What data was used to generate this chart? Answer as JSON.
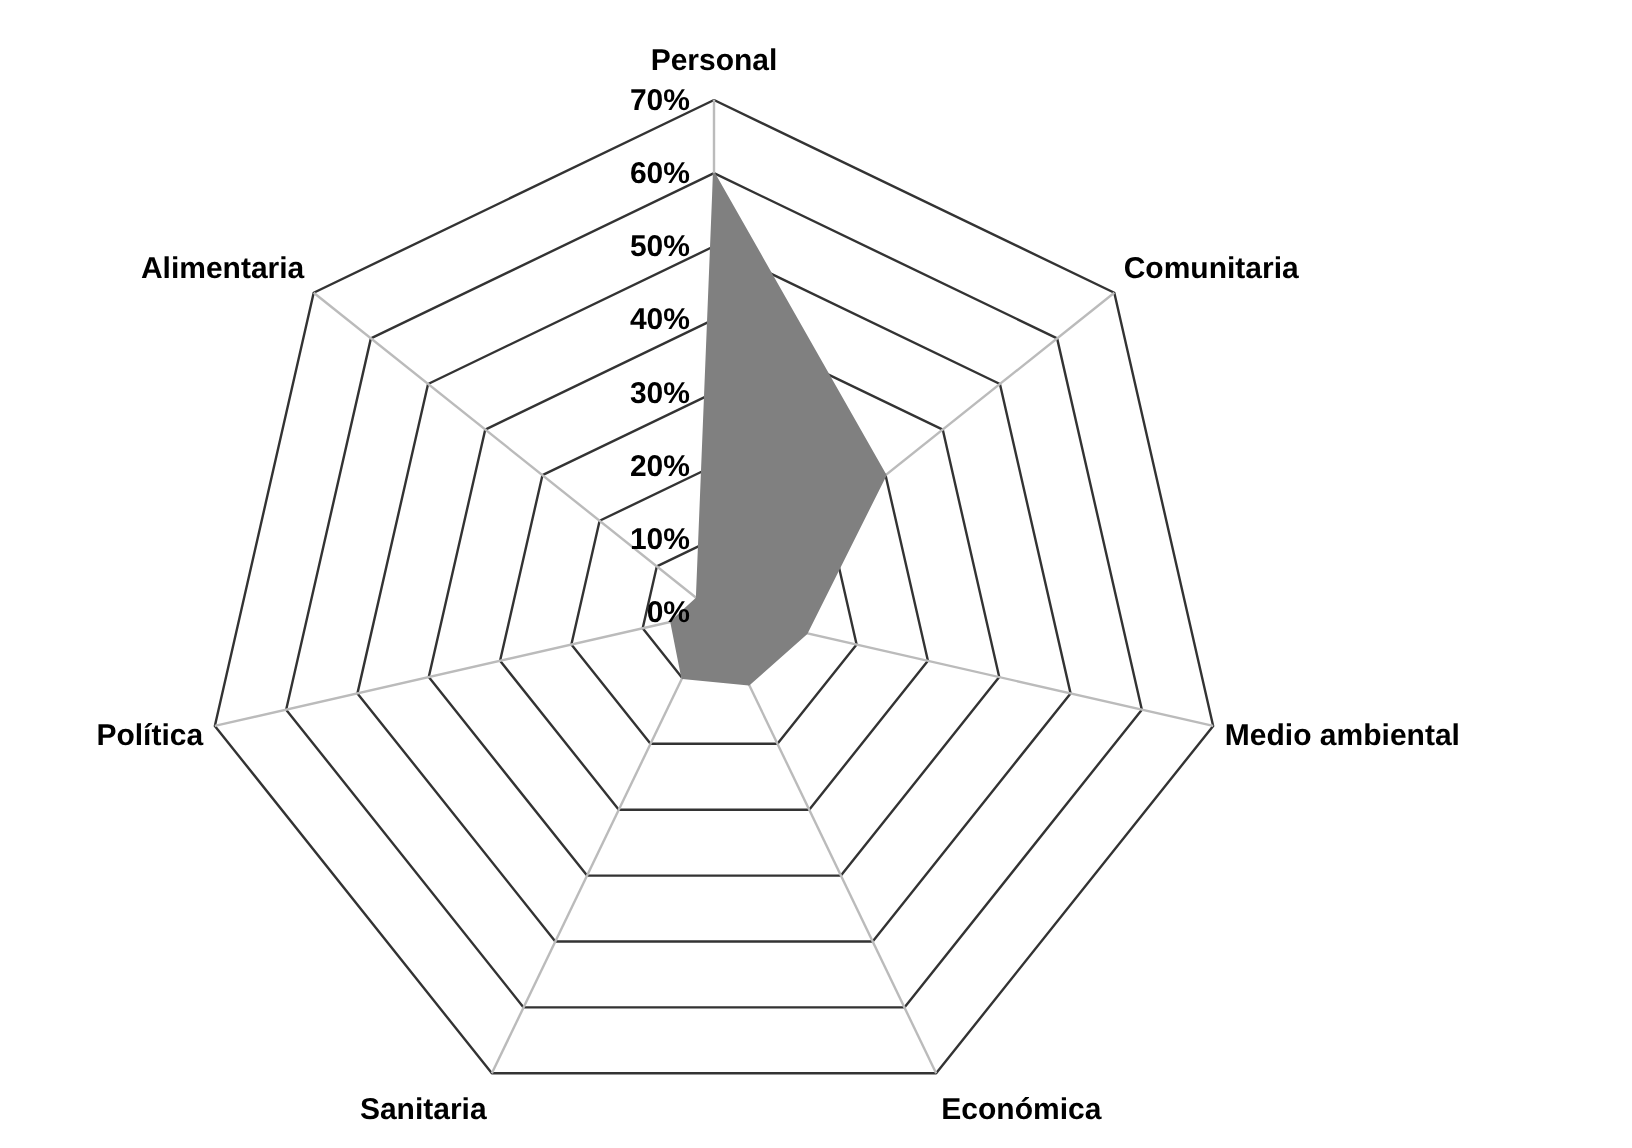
{
  "chart_data": {
    "type": "radar",
    "categories": [
      "Personal",
      "Comunitaria",
      "Medio ambiental",
      "Económica",
      "Sanitaria",
      "Política",
      "Alimentaria"
    ],
    "series": [
      {
        "color": "#808080",
        "values": [
          60,
          30,
          13,
          11,
          10,
          6,
          3
        ]
      }
    ],
    "ylim": [
      0,
      70
    ],
    "yticks": [
      {
        "value": 0,
        "label": "0%"
      },
      {
        "value": 10,
        "label": "10%"
      },
      {
        "value": 20,
        "label": "20%"
      },
      {
        "value": 30,
        "label": "30%"
      },
      {
        "value": 40,
        "label": "40%"
      },
      {
        "value": 50,
        "label": "50%"
      },
      {
        "value": 60,
        "label": "60%"
      },
      {
        "value": 70,
        "label": "70%"
      }
    ],
    "grid": true
  }
}
